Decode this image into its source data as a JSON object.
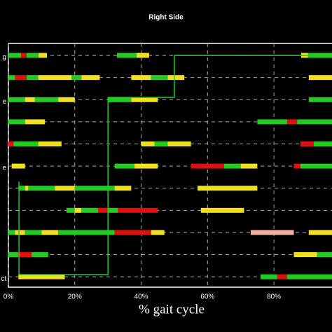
{
  "chart_data": {
    "type": "timing",
    "title": "Right Side",
    "x_label": "% gait cycle",
    "xlim": [
      0,
      97.5
    ],
    "ylim": [
      10.47,
      -0.54
    ],
    "grid": true,
    "xticks": [
      {
        "value": 0,
        "label": "0%"
      },
      {
        "value": 20,
        "label": "20%"
      },
      {
        "value": 40,
        "label": "40%"
      },
      {
        "value": 60,
        "label": "60%"
      },
      {
        "value": 80,
        "label": "80%"
      }
    ],
    "rows": [
      {
        "label": "g",
        "segments": [
          [
            0,
            3.8,
            "#22cc22"
          ],
          [
            3.8,
            5.5,
            "#dd1111"
          ],
          [
            5.5,
            9.1,
            "#22cc22"
          ],
          [
            9.1,
            11.6,
            "#f0e020"
          ],
          [
            32.7,
            38.6,
            "#22cc22"
          ],
          [
            38.6,
            42.4,
            "#f0e020"
          ],
          [
            88.2,
            90.3,
            "#f0e020"
          ],
          [
            90.3,
            97.5,
            "#22cc22"
          ]
        ]
      },
      {
        "label": null,
        "segments": [
          [
            0,
            2,
            "#22cc22"
          ],
          [
            2,
            5.5,
            "#dd1111"
          ],
          [
            5.5,
            9,
            "#22cc22"
          ],
          [
            9,
            19,
            "#f0e020"
          ],
          [
            19,
            22,
            "#22cc22"
          ],
          [
            22,
            27.5,
            "#f0e020"
          ],
          [
            37,
            43,
            "#f0e020"
          ],
          [
            43,
            48,
            "#22cc22"
          ],
          [
            48,
            53,
            "#f0e020"
          ],
          [
            90.5,
            97.5,
            "#f0e020"
          ]
        ]
      },
      {
        "label": "e",
        "segments": [
          [
            0,
            5,
            "#22cc22"
          ],
          [
            5,
            8,
            "#f0e020"
          ],
          [
            8,
            15,
            "#22cc22"
          ],
          [
            15,
            20,
            "#f0e020"
          ],
          [
            30,
            37,
            "#22cc22"
          ],
          [
            37,
            45,
            "#f0e020"
          ],
          [
            90.5,
            97.5,
            "#22cc22"
          ]
        ]
      },
      {
        "label": null,
        "segments": [
          [
            0,
            5,
            "#22cc22"
          ],
          [
            5,
            11,
            "#f0e020"
          ],
          [
            75,
            84,
            "#22cc22"
          ],
          [
            84,
            87,
            "#dd1111"
          ],
          [
            87,
            97.5,
            "#22cc22"
          ]
        ]
      },
      {
        "label": null,
        "segments": [
          [
            0,
            1.5,
            "#dd1111"
          ],
          [
            1.5,
            9,
            "#22cc22"
          ],
          [
            9,
            16,
            "#f0e020"
          ],
          [
            40,
            44,
            "#f0e020"
          ],
          [
            44,
            48,
            "#22cc22"
          ],
          [
            48,
            55,
            "#f0e020"
          ],
          [
            88,
            92,
            "#dd1111"
          ],
          [
            92,
            97.5,
            "#22cc22"
          ]
        ]
      },
      {
        "label": "e",
        "segments": [
          [
            1,
            5,
            "#f0e020"
          ],
          [
            32,
            38,
            "#22cc22"
          ],
          [
            38,
            45,
            "#f0e020"
          ],
          [
            55,
            65,
            "#dd1111"
          ],
          [
            65,
            70,
            "#22cc22"
          ],
          [
            70,
            75,
            "#f0e020"
          ],
          [
            86,
            88,
            "#dd1111"
          ],
          [
            88,
            97.5,
            "#22cc22"
          ]
        ]
      },
      {
        "label": null,
        "segments": [
          [
            3,
            5,
            "#22cc22"
          ],
          [
            5,
            6,
            "#f0e020"
          ],
          [
            6,
            14,
            "#22cc22"
          ],
          [
            14,
            20,
            "#f0e020"
          ],
          [
            20,
            32,
            "#22cc22"
          ],
          [
            32,
            37,
            "#f0e020"
          ],
          [
            57,
            75,
            "#f0e020"
          ]
        ]
      },
      {
        "label": null,
        "segments": [
          [
            17.5,
            20,
            "#22cc22"
          ],
          [
            20,
            22,
            "#f0e020"
          ],
          [
            22,
            27,
            "#22cc22"
          ],
          [
            27,
            30,
            "#dd1111"
          ],
          [
            30,
            33,
            "#22cc22"
          ],
          [
            33,
            45,
            "#dd1111"
          ],
          [
            58,
            71,
            "#f0e020"
          ]
        ]
      },
      {
        "label": null,
        "segments": [
          [
            0,
            2,
            "#22cc22"
          ],
          [
            2,
            5,
            "#f0e020"
          ],
          [
            5,
            10,
            "#22cc22"
          ],
          [
            10,
            15,
            "#f0e020"
          ],
          [
            15,
            32,
            "#22cc22"
          ],
          [
            32,
            43,
            "#dd1111"
          ],
          [
            43,
            47,
            "#f0e020"
          ],
          [
            73,
            86,
            "#f0b0a0"
          ],
          [
            90.5,
            97.5,
            "#f0e020"
          ]
        ]
      },
      {
        "label": null,
        "segments": [
          [
            0,
            3,
            "#22cc22"
          ],
          [
            3,
            7,
            "#dd1111"
          ],
          [
            7,
            12,
            "#22cc22"
          ],
          [
            86,
            93,
            "#f0e020"
          ],
          [
            93,
            97.5,
            "#22cc22"
          ]
        ]
      },
      {
        "label": "ct",
        "segments": [
          [
            3,
            17,
            "#f0e020"
          ],
          [
            76,
            81,
            "#22cc22"
          ],
          [
            81,
            84,
            "#dd1111"
          ],
          [
            84,
            97.5,
            "#22cc22"
          ]
        ]
      }
    ],
    "line": {
      "color": "#22cc22",
      "x": [
        3.2,
        3.2,
        30,
        30,
        50,
        50,
        97.5
      ],
      "values": [
        5.7,
        9.9,
        9.9,
        1.9,
        1.9,
        0,
        0
      ]
    }
  }
}
